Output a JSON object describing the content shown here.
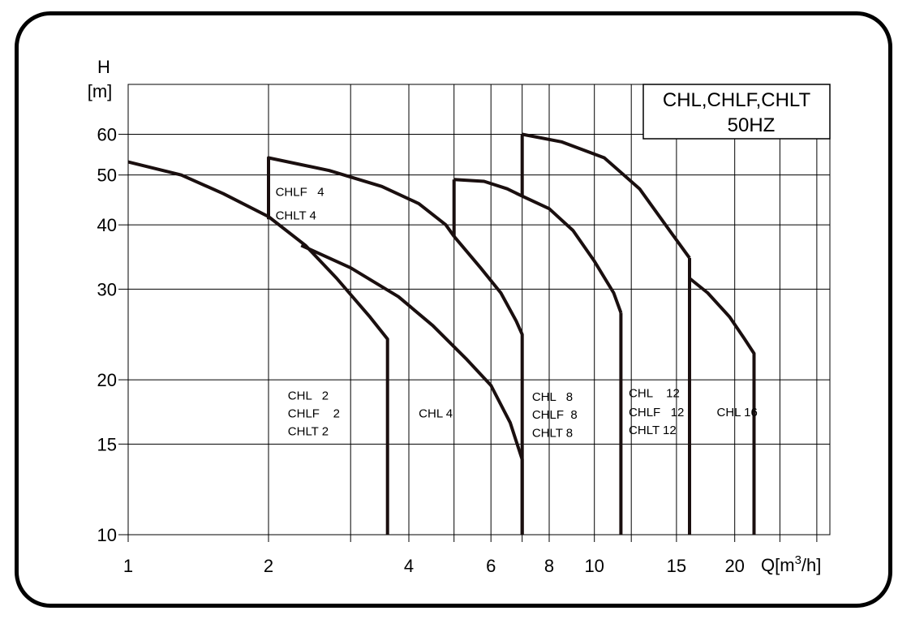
{
  "chart_data": {
    "type": "line",
    "title_lines": [
      "CHL,CHLF,CHLT",
      "50HZ"
    ],
    "xlabel": "Q[m",
    "xlabel_sup": "3",
    "xlabel_tail": "/h]",
    "ylabel_lines": [
      "H",
      "[m]"
    ],
    "x_scale": "log",
    "y_scale": "log",
    "xlim": [
      1,
      32
    ],
    "ylim": [
      10,
      75
    ],
    "x_ticks": [
      1,
      2,
      4,
      6,
      8,
      10,
      15,
      20
    ],
    "x_tick_labels": [
      "1",
      "2",
      "4",
      "6",
      "8",
      "10",
      "15",
      "20"
    ],
    "x_grid": [
      1,
      2,
      3,
      4,
      5,
      6,
      7,
      8,
      10,
      12,
      15,
      20,
      25,
      30
    ],
    "y_ticks": [
      10,
      15,
      20,
      30,
      40,
      50,
      60
    ],
    "y_tick_labels": [
      "10",
      "15",
      "20",
      "30",
      "40",
      "50",
      "60"
    ],
    "y_grid": [
      10,
      15,
      20,
      30,
      40,
      50,
      60
    ],
    "grid": true,
    "series": [
      {
        "name": "CHL 2",
        "points": [
          [
            1,
            53
          ],
          [
            1.3,
            50
          ],
          [
            1.6,
            46
          ],
          [
            2,
            41.5
          ],
          [
            2.4,
            36.5
          ],
          [
            2.8,
            31.5
          ],
          [
            3.3,
            26.5
          ],
          [
            3.6,
            24
          ],
          [
            3.6,
            10
          ]
        ]
      },
      {
        "name": "CHL 4",
        "points": [
          [
            2.35,
            36.5
          ],
          [
            3,
            33
          ],
          [
            3.8,
            29
          ],
          [
            4.5,
            25.5
          ],
          [
            5.3,
            22
          ],
          [
            6,
            19.5
          ],
          [
            6.6,
            16.5
          ],
          [
            7,
            14
          ],
          [
            7,
            10
          ]
        ]
      },
      {
        "name": "CHLF 4",
        "points": [
          [
            2,
            41
          ],
          [
            2,
            54
          ],
          [
            2.7,
            51
          ],
          [
            3.5,
            47.5
          ],
          [
            4.2,
            44
          ],
          [
            4.8,
            40
          ],
          [
            5,
            38
          ]
        ]
      },
      {
        "name": "CHL 8",
        "points": [
          [
            5,
            38
          ],
          [
            5.7,
            33
          ],
          [
            6.3,
            29.5
          ],
          [
            6.8,
            26
          ],
          [
            7,
            24.5
          ],
          [
            7,
            10
          ]
        ]
      },
      {
        "name": "CHLF 8",
        "points": [
          [
            5,
            38
          ],
          [
            5,
            49
          ]
        ]
      },
      {
        "name": "CHL 8 upper",
        "points": [
          [
            5,
            49
          ],
          [
            5.8,
            48.6
          ],
          [
            6.5,
            47
          ],
          [
            7,
            45.5
          ],
          [
            8,
            43
          ],
          [
            9,
            39
          ],
          [
            10,
            34
          ],
          [
            11,
            29.5
          ],
          [
            11.4,
            27
          ]
        ]
      },
      {
        "name": "CHL 12",
        "points": [
          [
            11.4,
            27
          ],
          [
            11.4,
            10
          ]
        ]
      },
      {
        "name": "CHLF 12",
        "points": [
          [
            7,
            45.5
          ],
          [
            7,
            60
          ]
        ]
      },
      {
        "name": "CHL 12 upper",
        "points": [
          [
            7,
            60
          ],
          [
            8.5,
            58
          ],
          [
            10.5,
            54
          ],
          [
            12.5,
            47
          ],
          [
            14.5,
            39
          ],
          [
            16,
            34.5
          ]
        ]
      },
      {
        "name": "CHL 16",
        "points": [
          [
            16,
            34.5
          ],
          [
            16,
            10
          ]
        ]
      },
      {
        "name": "CHL 16 upper",
        "points": [
          [
            16,
            31.5
          ],
          [
            17.5,
            29.5
          ],
          [
            19.5,
            26.5
          ],
          [
            21,
            24
          ],
          [
            22,
            22.5
          ],
          [
            22,
            10
          ]
        ]
      }
    ],
    "annotations": [
      {
        "text": "CHLF   4",
        "x": 2.07,
        "y": 45.5
      },
      {
        "text": "CHLT 4",
        "x": 2.07,
        "y": 41.0
      },
      {
        "text": "CHL   2",
        "x": 2.2,
        "y": 18.3
      },
      {
        "text": "CHLF    2",
        "x": 2.2,
        "y": 16.9
      },
      {
        "text": "CHLT 2",
        "x": 2.2,
        "y": 15.6
      },
      {
        "text": "CHL 4",
        "x": 4.2,
        "y": 16.9
      },
      {
        "text": "CHL   8",
        "x": 7.35,
        "y": 18.2
      },
      {
        "text": "CHLF  8",
        "x": 7.35,
        "y": 16.8
      },
      {
        "text": "CHLT 8",
        "x": 7.35,
        "y": 15.5
      },
      {
        "text": "CHL    12",
        "x": 11.85,
        "y": 18.5
      },
      {
        "text": "CHLF   12",
        "x": 11.85,
        "y": 17.0
      },
      {
        "text": "CHLT 12",
        "x": 11.85,
        "y": 15.7
      },
      {
        "text": "CHL 16",
        "x": 18.3,
        "y": 17.0
      }
    ]
  }
}
